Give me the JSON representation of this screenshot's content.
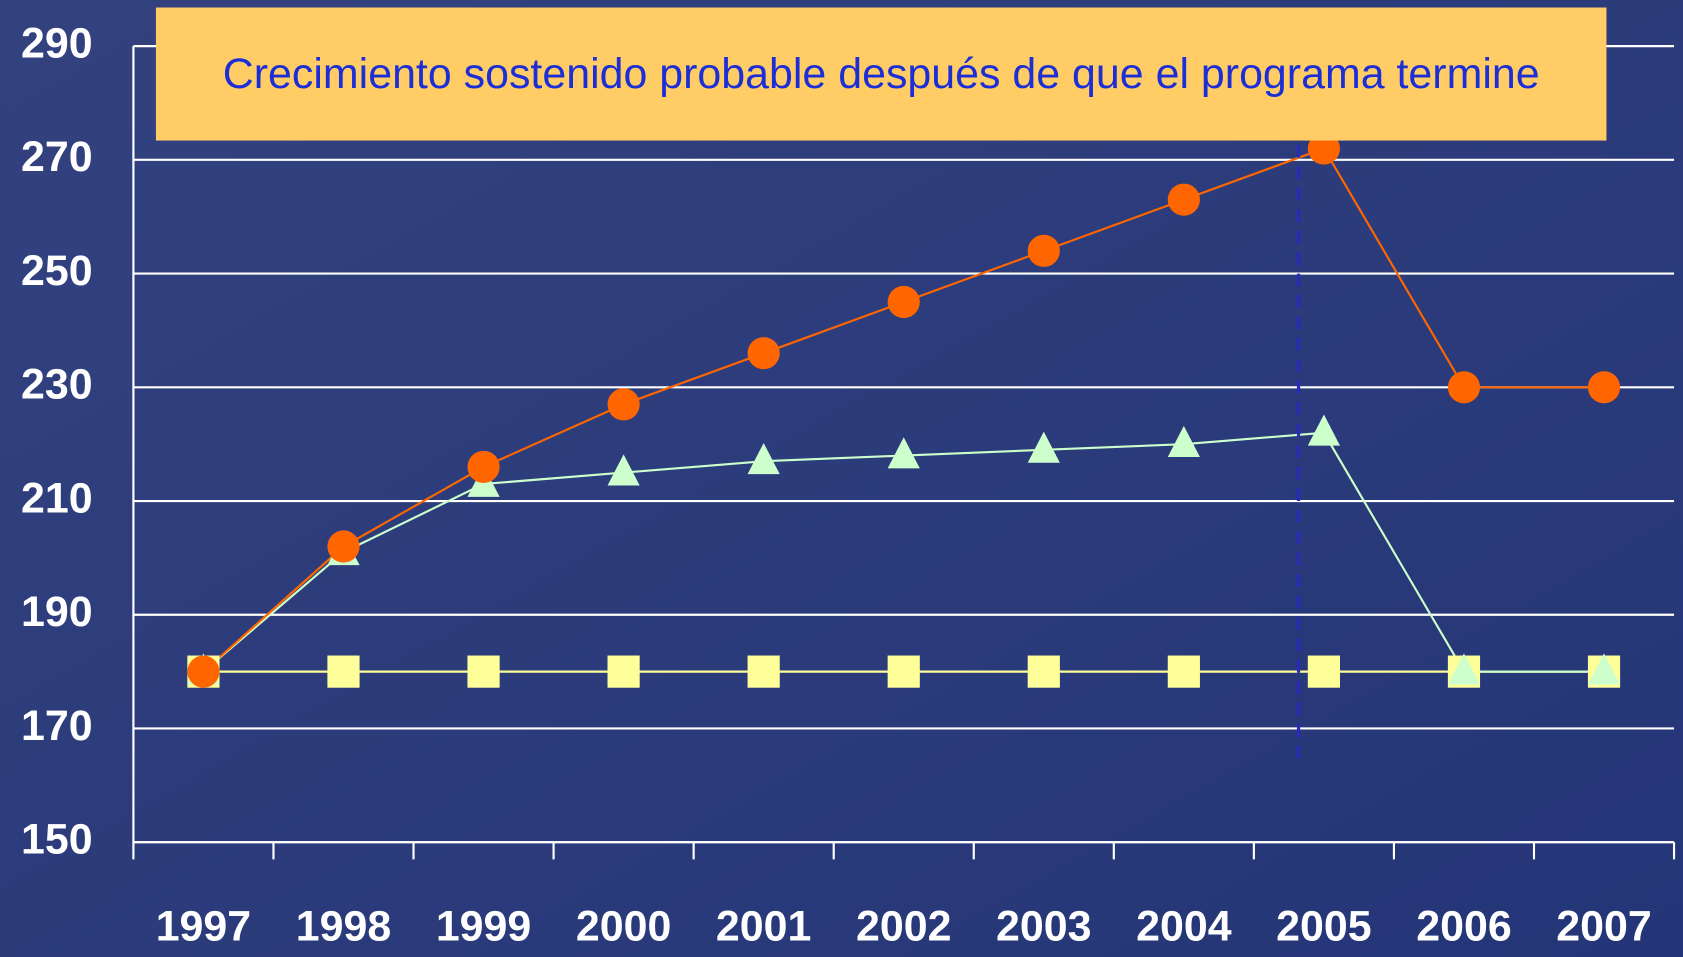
{
  "chart_data": {
    "type": "line",
    "annotation": "Crecimiento sostenido probable después de que el programa termine",
    "categories": [
      "1997",
      "1998",
      "1999",
      "2000",
      "2001",
      "2002",
      "2003",
      "2004",
      "2005",
      "2006",
      "2007"
    ],
    "series": [
      {
        "color": "#ff6600",
        "marker": "circle",
        "values": [
          180,
          202,
          216,
          227,
          236,
          245,
          254,
          263,
          272,
          230,
          230
        ]
      },
      {
        "color": "#ccffcc",
        "marker": "triangle",
        "values": [
          180,
          201,
          213,
          215,
          217,
          218,
          219,
          220,
          222,
          180,
          180
        ]
      },
      {
        "color": "#ffff99",
        "marker": "square",
        "values": [
          180,
          180,
          180,
          180,
          180,
          180,
          180,
          180,
          180,
          180,
          180
        ]
      }
    ],
    "ylim": [
      150,
      290
    ],
    "yticks": [
      150,
      170,
      190,
      210,
      230,
      250,
      270,
      290
    ],
    "grid": true
  }
}
